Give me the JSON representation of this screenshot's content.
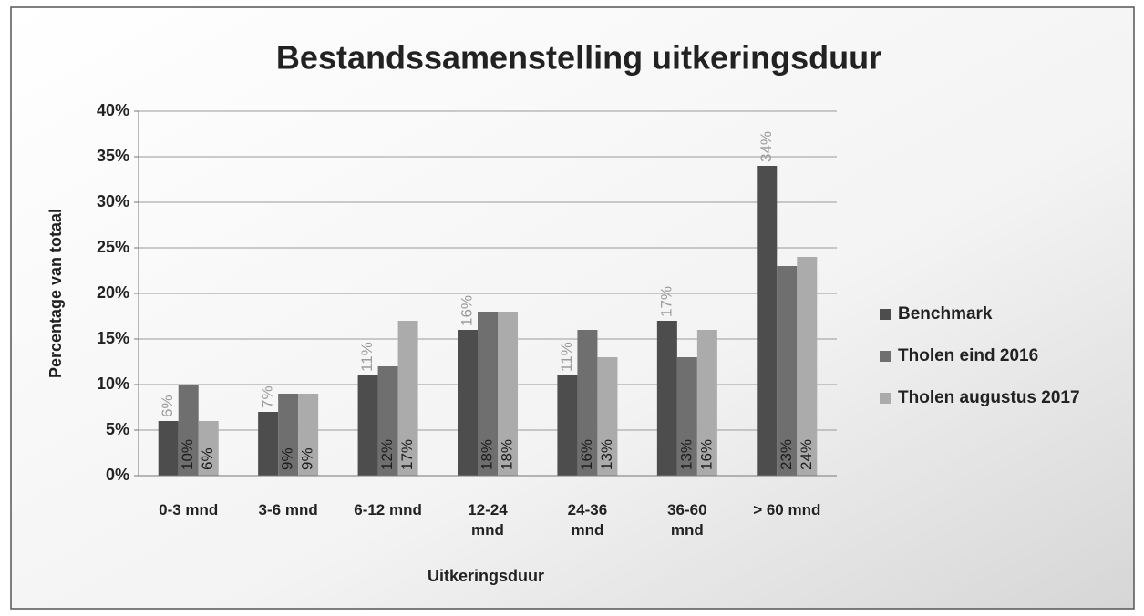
{
  "chart_data": {
    "type": "bar",
    "title": "Bestandssamenstelling uitkeringsduur",
    "xlabel": "Uitkeringsduur",
    "ylabel": "Percentage van totaal",
    "categories": [
      "0-3 mnd",
      "3-6 mnd",
      "6-12 mnd",
      "12-24 mnd",
      "24-36 mnd",
      "36-60 mnd",
      "> 60 mnd"
    ],
    "series": [
      {
        "name": "Benchmark",
        "color": "#4d4d4d",
        "values": [
          6,
          7,
          11,
          16,
          11,
          17,
          34
        ],
        "value_labels": [
          "6%",
          "7%",
          "11%",
          "16%",
          "11%",
          "17%",
          "34%"
        ]
      },
      {
        "name": "Tholen eind 2016",
        "color": "#6f6f6f",
        "values": [
          10,
          9,
          12,
          18,
          16,
          13,
          23
        ],
        "value_labels": [
          "10%",
          "9%",
          "12%",
          "18%",
          "16%",
          "13%",
          "23%"
        ]
      },
      {
        "name": "Tholen augustus 2017",
        "color": "#ababab",
        "values": [
          6,
          9,
          17,
          18,
          13,
          16,
          24
        ],
        "value_labels": [
          "6%",
          "9%",
          "17%",
          "18%",
          "13%",
          "16%",
          "24%"
        ]
      }
    ],
    "ylim": [
      0,
      40
    ],
    "yticks": [
      {
        "value": 0,
        "label": "0%"
      },
      {
        "value": 5,
        "label": "5%"
      },
      {
        "value": 10,
        "label": "10%"
      },
      {
        "value": 15,
        "label": "15%"
      },
      {
        "value": 20,
        "label": "20%"
      },
      {
        "value": 25,
        "label": "25%"
      },
      {
        "value": 30,
        "label": "30%"
      },
      {
        "value": 35,
        "label": "35%"
      },
      {
        "value": 40,
        "label": "40%"
      }
    ],
    "grid": true,
    "legend": "right"
  }
}
